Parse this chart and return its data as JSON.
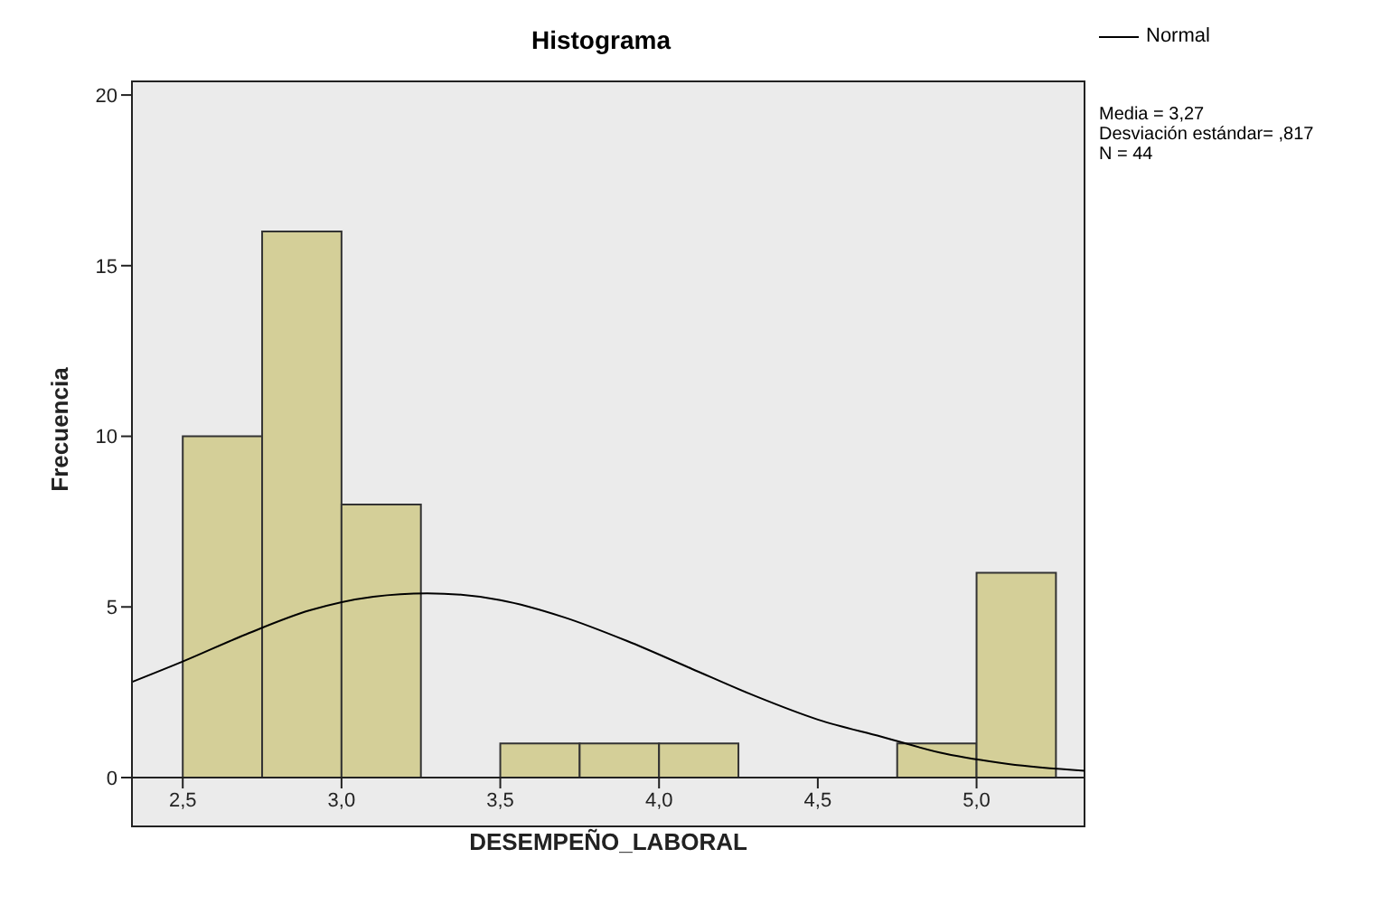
{
  "chart_data": {
    "type": "histogram",
    "title": "Histograma",
    "xlabel": "DESEMPEÑO_LABORAL",
    "ylabel": "Frecuencia",
    "bins": [
      2.5,
      2.75,
      3.0,
      3.25,
      3.5,
      3.75,
      4.0,
      4.25,
      4.5,
      4.75,
      5.0,
      5.25
    ],
    "values": [
      10,
      16,
      8,
      0,
      1,
      1,
      1,
      0,
      0,
      1,
      6
    ],
    "color": "#d4cf98",
    "series": [
      {
        "type": "line",
        "name": "Normal",
        "color": "#000000",
        "x": [
          2.34,
          2.5,
          2.7,
          2.9,
          3.1,
          3.27,
          3.5,
          3.7,
          3.9,
          4.1,
          4.3,
          4.5,
          4.7,
          4.9,
          5.1,
          5.34
        ],
        "values": [
          2.8,
          3.4,
          4.2,
          4.9,
          5.3,
          5.4,
          5.2,
          4.7,
          4.0,
          3.2,
          2.4,
          1.7,
          1.2,
          0.7,
          0.4,
          0.2
        ]
      }
    ],
    "xlim": [
      2.34,
      5.34
    ],
    "xticks": [
      {
        "value": 2.5,
        "label": "2,5"
      },
      {
        "value": 3.0,
        "label": "3,0"
      },
      {
        "value": 3.5,
        "label": "3,5"
      },
      {
        "value": 4.0,
        "label": "4,0"
      },
      {
        "value": 4.5,
        "label": "4,5"
      },
      {
        "value": 5.0,
        "label": "5,0"
      }
    ],
    "ylim": [
      0,
      20.4
    ],
    "yticks": [
      0,
      5,
      10,
      15,
      20
    ],
    "legend": "top right",
    "marker": "none",
    "annotations": [
      "Media = 3,27",
      "Desviación estándar= ,817",
      "N = 44"
    ]
  }
}
